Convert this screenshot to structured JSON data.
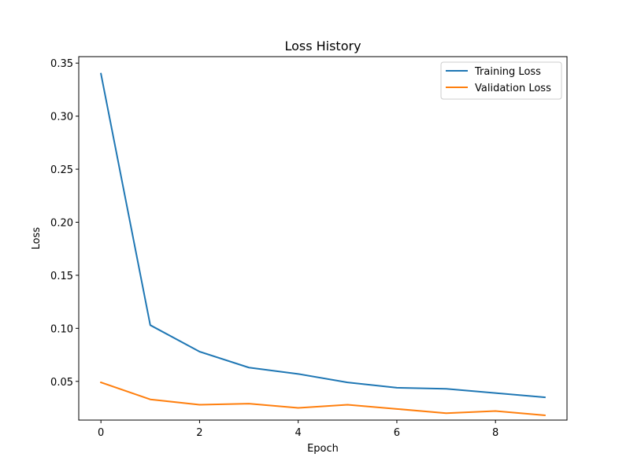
{
  "chart_data": {
    "type": "line",
    "title": "Loss History",
    "xlabel": "Epoch",
    "ylabel": "Loss",
    "xlim": [
      -0.45,
      9.45
    ],
    "ylim": [
      0.0135,
      0.3561
    ],
    "x_ticks": [
      0,
      2,
      4,
      6,
      8
    ],
    "y_ticks": [
      0.05,
      0.1,
      0.15,
      0.2,
      0.25,
      0.3,
      0.35
    ],
    "y_tick_labels": [
      "0.05",
      "0.10",
      "0.15",
      "0.20",
      "0.25",
      "0.30",
      "0.35"
    ],
    "x_tick_labels": [
      "0",
      "2",
      "4",
      "6",
      "8"
    ],
    "grid": false,
    "legend_position": "upper right",
    "x": [
      0,
      1,
      2,
      3,
      4,
      5,
      6,
      7,
      8,
      9
    ],
    "series": [
      {
        "name": "Training Loss",
        "color": "#1f77b4",
        "values": [
          0.34,
          0.103,
          0.078,
          0.063,
          0.057,
          0.049,
          0.044,
          0.043,
          0.039,
          0.035
        ]
      },
      {
        "name": "Validation Loss",
        "color": "#ff7f0e",
        "values": [
          0.049,
          0.033,
          0.028,
          0.029,
          0.025,
          0.028,
          0.024,
          0.02,
          0.022,
          0.018
        ]
      }
    ]
  }
}
